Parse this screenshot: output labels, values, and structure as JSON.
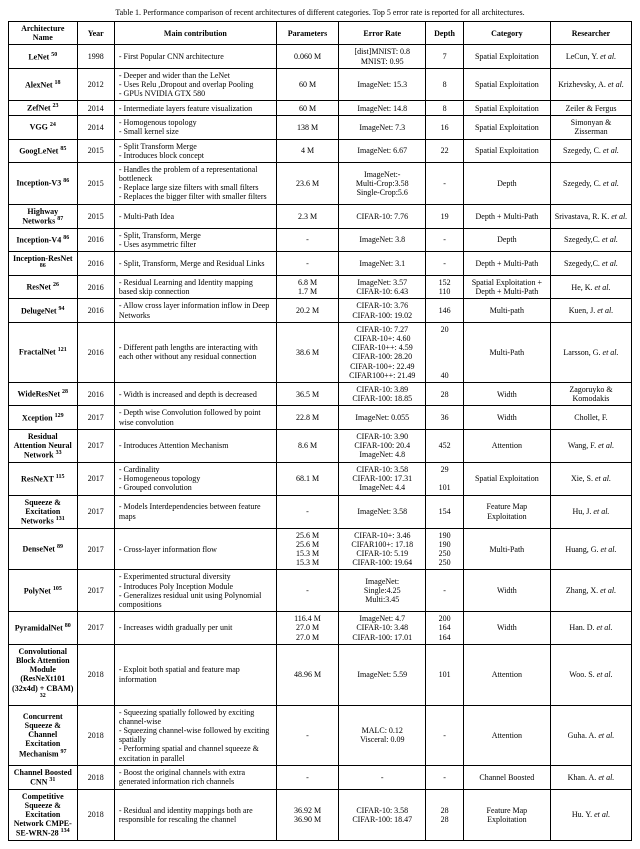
{
  "caption": "Table 1. Performance comparison of recent architectures of different categories. Top 5 error rate is reported for all architectures.",
  "headers": [
    "Architecture Name",
    "Year",
    "Main contribution",
    "Parameters",
    "Error Rate",
    "Depth",
    "Category",
    "Researcher"
  ],
  "rows": [
    {
      "name": "LeNet",
      "sup": "50",
      "year": "1998",
      "contrib": "- First Popular CNN architecture",
      "params": "0.060 M",
      "error": "[dist]MNIST: 0.8\nMNIST: 0.95",
      "depth": "7",
      "category": "Spatial Exploitation",
      "researcher": "LeCun, Y. et al."
    },
    {
      "name": "AlexNet",
      "sup": "18",
      "year": "2012",
      "contrib": "- Deeper and wider than the LeNet\n- Uses Relu ,Dropout and overlap Pooling\n- GPUs NVIDIA GTX 580",
      "params": "60 M",
      "error": "ImageNet: 15.3",
      "depth": "8",
      "category": "Spatial Exploitation",
      "researcher": "Krizhevsky, A. et al."
    },
    {
      "name": "ZefNet",
      "sup": "23",
      "year": "2014",
      "contrib": "- Intermediate layers feature visualization",
      "params": "60 M",
      "error": "ImageNet: 14.8",
      "depth": "8",
      "category": "Spatial Exploitation",
      "researcher": "Zeiler & Fergus"
    },
    {
      "name": "VGG",
      "sup": "24",
      "year": "2014",
      "contrib": "- Homogenous topology\n- Small kernel size",
      "params": "138 M",
      "error": "ImageNet: 7.3",
      "depth": "16",
      "category": "Spatial Exploitation",
      "researcher": "Simonyan & Zisserman"
    },
    {
      "name": "GoogLeNet",
      "sup": "85",
      "year": "2015",
      "contrib": "- Split Transform Merge\n- Introduces block concept",
      "params": "4 M",
      "error": "ImageNet: 6.67",
      "depth": "22",
      "category": "Spatial Exploitation",
      "researcher": "Szegedy, C. et al."
    },
    {
      "name": "Inception-V3",
      "sup": "86",
      "year": "2015",
      "contrib": "- Handles the problem of a representational bottleneck\n- Replace large size filters with small filters\n- Replaces the bigger filter with smaller filters",
      "params": "23.6 M",
      "error": "ImageNet:-\nMulti-Crop:3.58\nSingle-Crop:5.6",
      "depth": "-",
      "category": "Depth",
      "researcher": "Szegedy, C. et al."
    },
    {
      "name": "Highway Networks",
      "sup": "87",
      "year": "2015",
      "contrib": "- Multi-Path Idea",
      "params": "2.3 M",
      "error": "CIFAR-10: 7.76",
      "depth": "19",
      "category": "Depth + Multi-Path",
      "researcher": "Srivastava, R. K. et al."
    },
    {
      "name": "Inception-V4",
      "sup": "86",
      "year": "2016",
      "contrib": "- Split, Transform, Merge\n- Uses asymmetric filter",
      "params": "-",
      "error": "ImageNet: 3.8",
      "depth": "-",
      "category": "Depth",
      "researcher": "Szegedy,C. et al."
    },
    {
      "name": "Inception-ResNet",
      "sup": "86",
      "year": "2016",
      "contrib": "- Split, Transform, Merge and Residual Links",
      "params": "-",
      "error": "ImageNet: 3.1",
      "depth": "-",
      "category": "Depth + Multi-Path",
      "researcher": "Szegedy,C. et al."
    },
    {
      "name": "ResNet",
      "sup": "26",
      "year": "2016",
      "contrib": "- Residual Learning and Identity mapping based skip connection",
      "params": "6.8 M\n1.7 M",
      "error": "ImageNet: 3.57\nCIFAR-10: 6.43",
      "depth": "152\n110",
      "category": "Spatial Exploitation + Depth + Multi-Path",
      "researcher": "He, K. et al."
    },
    {
      "name": "DelugeNet",
      "sup": "94",
      "year": "2016",
      "contrib": "- Allow cross layer information inflow in Deep Networks",
      "params": "20.2 M",
      "error": "CIFAR-10: 3.76\nCIFAR-100: 19.02",
      "depth": "146",
      "category": "Multi-path",
      "researcher": "Kuen, J. et al."
    },
    {
      "name": "FractalNet",
      "sup": "121",
      "year": "2016",
      "contrib": "- Different path lengths are interacting with each other without any residual connection",
      "params": "38.6 M",
      "error": "CIFAR-10: 7.27\nCIFAR-10+: 4.60\nCIFAR-10++: 4.59\nCIFAR-100: 28.20\nCIFAR-100+: 22.49\nCIFAR100++: 21.49",
      "depth": "20\n\n\n\n\n40",
      "category": "Multi-Path",
      "researcher": "Larsson, G. et al."
    },
    {
      "name": "WideResNet",
      "sup": "28",
      "year": "2016",
      "contrib": "- Width is increased and depth is decreased",
      "params": "36.5 M",
      "error": "CIFAR-10: 3.89\nCIFAR-100: 18.85",
      "depth": "28",
      "category": "Width",
      "researcher": "Zagoruyko & Komodakis"
    },
    {
      "name": "Xception",
      "sup": "129",
      "year": "2017",
      "contrib": "- Depth wise Convolution followed by point wise convolution",
      "params": "22.8 M",
      "error": "ImageNet: 0.055",
      "depth": "36",
      "category": "Width",
      "researcher": "Chollet, F."
    },
    {
      "name": "Residual Attention Neural Network",
      "sup": "33",
      "year": "2017",
      "contrib": "- Introduces Attention Mechanism",
      "params": "8.6 M",
      "error": "CIFAR-10: 3.90\nCIFAR-100: 20.4\nImageNet: 4.8",
      "depth": "452",
      "category": "Attention",
      "researcher": "Wang, F. et al."
    },
    {
      "name": "ResNeXT",
      "sup": "115",
      "year": "2017",
      "contrib": "- Cardinality\n- Homogeneous topology\n- Grouped convolution",
      "params": "68.1 M",
      "error": "CIFAR-10: 3.58\nCIFAR-100: 17.31\nImageNet: 4.4",
      "depth": "29\n\n101",
      "category": "Spatial Exploitation",
      "researcher": "Xie, S. et al."
    },
    {
      "name": "Squeeze & Excitation Networks",
      "sup": "131",
      "year": "2017",
      "contrib": "- Models Interdependencies between feature maps",
      "params": "-",
      "error": "ImageNet: 3.58",
      "depth": "154",
      "category": "Feature Map Exploitation",
      "researcher": "Hu, J. et al."
    },
    {
      "name": "DenseNet",
      "sup": "89",
      "year": "2017",
      "contrib": "- Cross-layer information flow",
      "params": "25.6 M\n25.6 M\n15.3 M\n15.3 M",
      "error": "CIFAR-10+: 3.46\nCIFAR100+: 17.18\nCIFAR-10: 5.19\nCIFAR-100: 19.64",
      "depth": "190\n190\n250\n250",
      "category": "Multi-Path",
      "researcher": "Huang, G. et al."
    },
    {
      "name": "PolyNet",
      "sup": "105",
      "year": "2017",
      "contrib": "- Experimented structural diversity\n- Introduces Poly Inception Module\n- Generalizes residual unit using Polynomial compositions",
      "params": "-",
      "error": "ImageNet:\nSingle:4.25\nMulti:3.45",
      "depth": "-",
      "category": "Width",
      "researcher": "Zhang, X. et al."
    },
    {
      "name": "PyramidalNet",
      "sup": "80",
      "year": "2017",
      "contrib": "- Increases width gradually per unit",
      "params": "116.4 M\n27.0 M\n27.0 M",
      "error": "ImageNet: 4.7\nCIFAR-10: 3.48\nCIFAR-100: 17.01",
      "depth": "200\n164\n164",
      "category": "Width",
      "researcher": "Han. D. et al."
    },
    {
      "name": "Convolutional Block Attention Module (ResNeXt101 (32x4d) + CBAM)",
      "sup": "32",
      "year": "2018",
      "contrib": "- Exploit both spatial and feature map information",
      "params": "48.96 M",
      "error": "ImageNet: 5.59",
      "depth": "101",
      "category": "Attention",
      "researcher": "Woo. S. et al."
    },
    {
      "name": "Concurrent Squeeze & Channel Excitation Mechanism",
      "sup": "97",
      "year": "2018",
      "contrib": "- Squeezing spatially followed by exciting channel-wise\n- Squeezing channel-wise followed by exciting spatially\n- Performing spatial and channel squeeze & excitation in parallel",
      "params": "-",
      "error": "MALC: 0.12\nVisceral: 0.09",
      "depth": "-",
      "category": "Attention",
      "researcher": "Guha. A. et al."
    },
    {
      "name": "Channel Boosted CNN",
      "sup": "31",
      "year": "2018",
      "contrib": "- Boost the original channels with extra generated information rich channels",
      "params": "-",
      "error": "-",
      "depth": "-",
      "category": "Channel Boosted",
      "researcher": "Khan. A. et al."
    },
    {
      "name": "Competitive Squeeze & Excitation Network CMPE-SE-WRN-28",
      "sup": "134",
      "year": "2018",
      "contrib": "- Residual and identity mappings both are responsible for rescaling the channel",
      "params": "36.92 M\n36.90 M",
      "error": "CIFAR-10: 3.58\nCIFAR-100: 18.47",
      "depth": "28\n28",
      "category": "Feature Map Exploitation",
      "researcher": "Hu. Y. et al."
    }
  ]
}
